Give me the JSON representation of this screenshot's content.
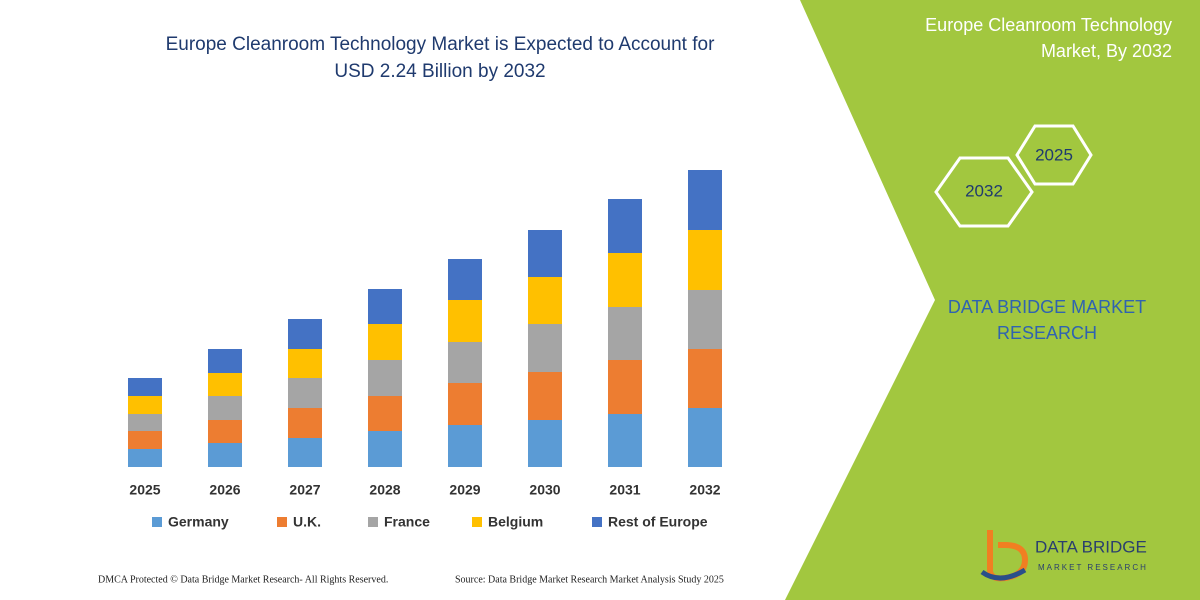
{
  "chart_data": {
    "type": "bar",
    "stacked": true,
    "title": [
      "Europe Cleanroom Technology Market is Expected to Account for",
      "USD 2.24 Billion by 2032"
    ],
    "categories": [
      "2025",
      "2026",
      "2027",
      "2028",
      "2029",
      "2030",
      "2031",
      "2032"
    ],
    "series": [
      {
        "name": "Germany",
        "color": "#5b9bd5",
        "values": [
          18,
          24,
          29,
          36,
          42,
          47,
          53,
          59
        ]
      },
      {
        "name": "U.K.",
        "color": "#ed7d31",
        "values": [
          18,
          23,
          30,
          35,
          42,
          48,
          54,
          59
        ]
      },
      {
        "name": "France",
        "color": "#a5a5a5",
        "values": [
          17,
          24,
          30,
          36,
          41,
          48,
          53,
          59
        ]
      },
      {
        "name": "Belgium",
        "color": "#ffc000",
        "values": [
          18,
          23,
          29,
          36,
          42,
          47,
          54,
          60
        ]
      },
      {
        "name": "Rest of Europe",
        "color": "#4472c4",
        "values": [
          18,
          24,
          30,
          35,
          41,
          47,
          54,
          60
        ]
      }
    ],
    "legend": "bottom"
  },
  "sidebar": {
    "title": [
      "Europe Cleanroom Technology",
      "Market, By 2032"
    ],
    "hexagons": [
      "2025",
      "2032"
    ],
    "brand": [
      "DATA BRIDGE MARKET",
      "RESEARCH"
    ]
  },
  "logo": {
    "name": "DATA BRIDGE",
    "tagline": "MARKET RESEARCH"
  },
  "footer": {
    "copyright": "DMCA Protected © Data Bridge Market Research-  All Rights Reserved.",
    "source": "Source: Data Bridge Market Research  Market Analysis Study 2025"
  }
}
